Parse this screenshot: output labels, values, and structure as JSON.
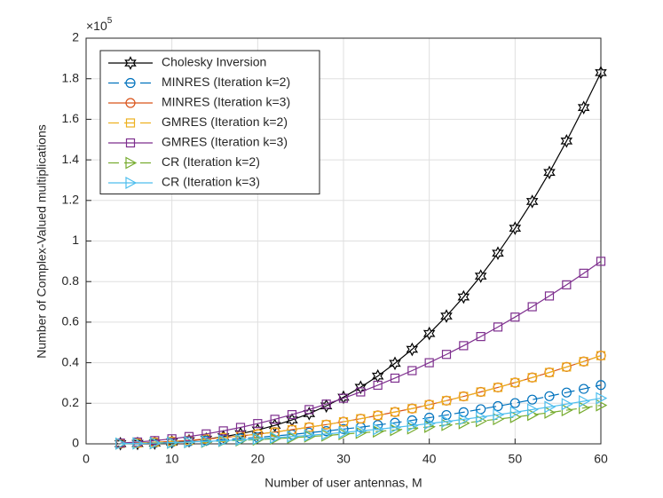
{
  "chart_data": {
    "type": "line",
    "y_exponent": {
      "base": "×10",
      "power": "5"
    },
    "xlabel": "Number of user antennas, M",
    "ylabel": "Number of Complex-Valued multiplications",
    "x": [
      4,
      6,
      8,
      10,
      12,
      14,
      16,
      18,
      20,
      22,
      24,
      26,
      28,
      30,
      32,
      34,
      36,
      38,
      40,
      42,
      44,
      46,
      48,
      50,
      52,
      54,
      56,
      58,
      60
    ],
    "xlim": [
      0,
      60
    ],
    "xticks": [
      0,
      10,
      20,
      30,
      40,
      50,
      60
    ],
    "ylim": [
      0,
      2
    ],
    "yticks": [
      0,
      0.2,
      0.4,
      0.6,
      0.8,
      1,
      1.2,
      1.4,
      1.6,
      1.8,
      2
    ],
    "grid": true,
    "legend": "upper left",
    "series": [
      {
        "name": "Cholesky Inversion",
        "color": "#000000",
        "dash": "solid",
        "marker": "hexagram",
        "values": [
          0.001,
          0.002,
          0.004,
          0.009,
          0.015,
          0.023,
          0.035,
          0.05,
          0.068,
          0.091,
          0.118,
          0.149,
          0.187,
          0.23,
          0.279,
          0.334,
          0.397,
          0.466,
          0.544,
          0.63,
          0.724,
          0.827,
          0.94,
          1.063,
          1.195,
          1.338,
          1.493,
          1.658,
          1.83
        ]
      },
      {
        "name": "MINRES (Iteration k=2)",
        "color": "#0072BD",
        "dash": "dashed",
        "marker": "circle",
        "values": [
          0.001,
          0.003,
          0.005,
          0.008,
          0.012,
          0.016,
          0.021,
          0.026,
          0.032,
          0.039,
          0.046,
          0.055,
          0.063,
          0.073,
          0.082,
          0.093,
          0.104,
          0.116,
          0.129,
          0.142,
          0.156,
          0.171,
          0.186,
          0.201,
          0.218,
          0.235,
          0.253,
          0.271,
          0.29
        ]
      },
      {
        "name": "MINRES (Iteration k=3)",
        "color": "#D95319",
        "dash": "solid",
        "marker": "circle",
        "values": [
          0.002,
          0.004,
          0.008,
          0.012,
          0.017,
          0.024,
          0.031,
          0.039,
          0.048,
          0.058,
          0.07,
          0.082,
          0.095,
          0.109,
          0.124,
          0.14,
          0.157,
          0.174,
          0.193,
          0.213,
          0.234,
          0.256,
          0.278,
          0.302,
          0.327,
          0.352,
          0.379,
          0.406,
          0.435
        ]
      },
      {
        "name": "GMRES (Iteration k=2)",
        "color": "#EDB120",
        "dash": "dashed",
        "marker": "square",
        "values": [
          0.002,
          0.004,
          0.008,
          0.012,
          0.017,
          0.024,
          0.031,
          0.039,
          0.048,
          0.058,
          0.07,
          0.082,
          0.095,
          0.109,
          0.124,
          0.14,
          0.157,
          0.174,
          0.193,
          0.213,
          0.234,
          0.256,
          0.278,
          0.302,
          0.327,
          0.352,
          0.379,
          0.406,
          0.435
        ]
      },
      {
        "name": "GMRES (Iteration k=3)",
        "color": "#7E2F8E",
        "dash": "solid",
        "marker": "square",
        "values": [
          0.004,
          0.009,
          0.016,
          0.025,
          0.036,
          0.049,
          0.064,
          0.081,
          0.1,
          0.121,
          0.144,
          0.169,
          0.196,
          0.225,
          0.256,
          0.289,
          0.324,
          0.361,
          0.4,
          0.441,
          0.484,
          0.529,
          0.576,
          0.625,
          0.676,
          0.729,
          0.784,
          0.841,
          0.9
        ]
      },
      {
        "name": "CR (Iteration k=2)",
        "color": "#77AC30",
        "dash": "dashed",
        "marker": "triangle-right",
        "values": [
          0.001,
          0.002,
          0.003,
          0.005,
          0.008,
          0.01,
          0.014,
          0.017,
          0.021,
          0.025,
          0.03,
          0.036,
          0.041,
          0.048,
          0.054,
          0.061,
          0.068,
          0.076,
          0.084,
          0.093,
          0.102,
          0.112,
          0.122,
          0.132,
          0.143,
          0.154,
          0.166,
          0.177,
          0.19
        ]
      },
      {
        "name": "CR (Iteration k=3)",
        "color": "#4DBEEE",
        "dash": "solid",
        "marker": "triangle-right",
        "values": [
          0.001,
          0.002,
          0.004,
          0.006,
          0.009,
          0.012,
          0.016,
          0.02,
          0.025,
          0.03,
          0.036,
          0.042,
          0.049,
          0.056,
          0.064,
          0.072,
          0.081,
          0.09,
          0.1,
          0.11,
          0.121,
          0.132,
          0.144,
          0.156,
          0.169,
          0.182,
          0.196,
          0.21,
          0.225
        ]
      }
    ]
  }
}
